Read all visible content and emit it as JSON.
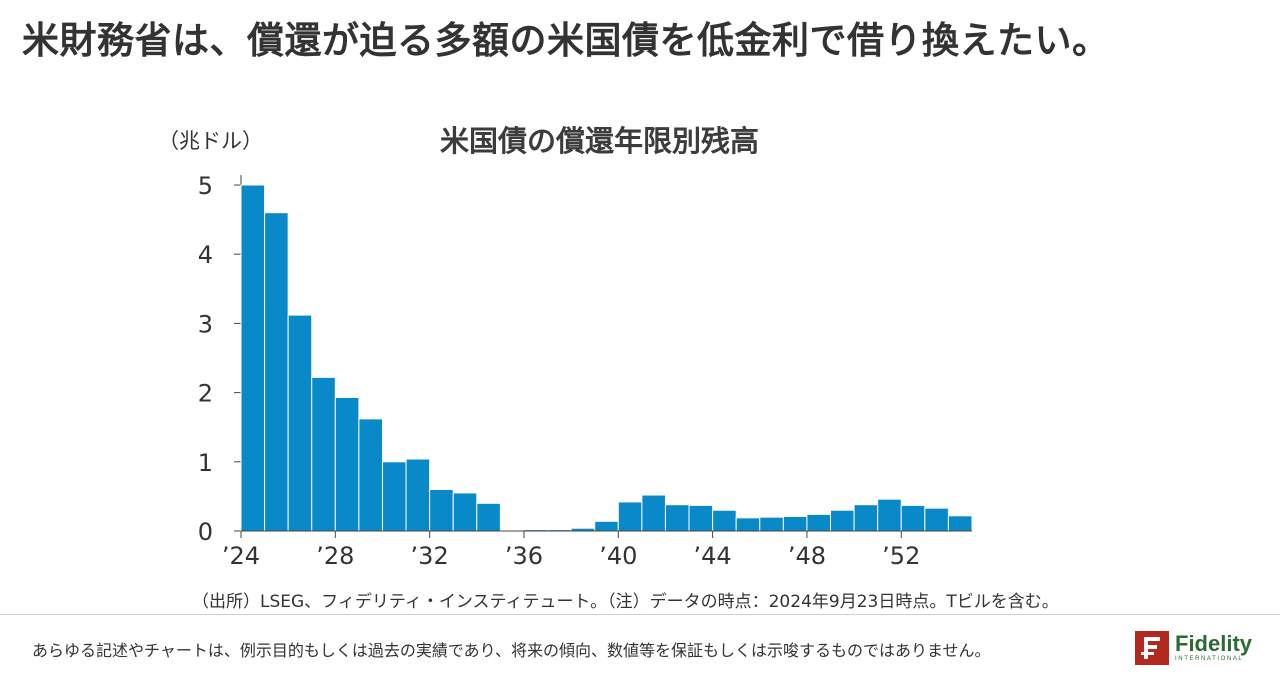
{
  "headline": "米財務省は、償還が迫る多額の米国債を低金利で借り換えたい。",
  "unit_label": "（兆ドル）",
  "chart_data": {
    "type": "bar",
    "title": "米国債の償還年限別残高",
    "ylabel": "（兆ドル）",
    "xlabel": "",
    "ylim": [
      0,
      5
    ],
    "yticks": [
      0,
      1,
      2,
      3,
      4,
      5
    ],
    "x_tick_labels": [
      "’24",
      "’28",
      "’32",
      "’36",
      "’40",
      "’44",
      "’48",
      "’52"
    ],
    "x_tick_years": [
      2024,
      2028,
      2032,
      2036,
      2040,
      2044,
      2048,
      2052
    ],
    "color": "#0a89c8",
    "years": [
      2024,
      2025,
      2026,
      2027,
      2028,
      2029,
      2030,
      2031,
      2032,
      2033,
      2034,
      2035,
      2036,
      2037,
      2038,
      2039,
      2040,
      2041,
      2042,
      2043,
      2044,
      2045,
      2046,
      2047,
      2048,
      2049,
      2050,
      2051,
      2052,
      2053,
      2054
    ],
    "values": [
      5.0,
      4.6,
      3.12,
      2.22,
      1.93,
      1.62,
      1.0,
      1.04,
      0.6,
      0.55,
      0.4,
      0.0,
      0.02,
      0.02,
      0.04,
      0.14,
      0.42,
      0.52,
      0.38,
      0.37,
      0.3,
      0.19,
      0.2,
      0.21,
      0.24,
      0.3,
      0.38,
      0.46,
      0.37,
      0.33,
      0.22
    ]
  },
  "source_note": "（出所）LSEG、フィデリティ・インスティテュート。（注）データの時点：2024年9月23日時点。Tビルを含む。",
  "disclaimer": "あらゆる記述やチャートは、例示目的もしくは過去の実績であり、将来の傾向、数値等を保証もしくは示唆するものではありません。",
  "logo": {
    "name": "Fidelity",
    "sub": "INTERNATIONAL",
    "brand_red": "#b22a1e",
    "brand_green": "#2b6a35"
  }
}
